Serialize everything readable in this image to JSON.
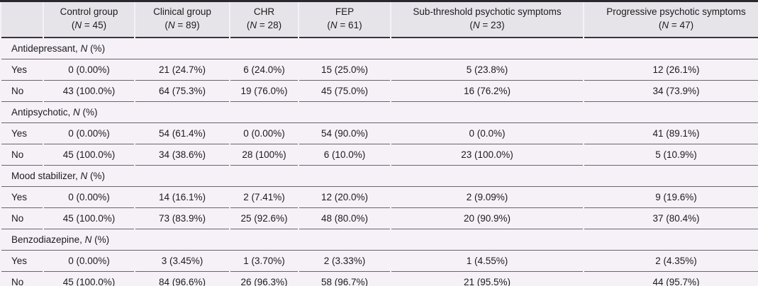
{
  "table": {
    "corner_label": "",
    "columns": [
      {
        "name": "Control group",
        "open": "(",
        "n": "N",
        "rest": " = 45)"
      },
      {
        "name": "Clinical group",
        "open": "(",
        "n": "N",
        "rest": " = 89)"
      },
      {
        "name": "CHR",
        "open": "(",
        "n": "N",
        "rest": " = 28)"
      },
      {
        "name": "FEP",
        "open": "(",
        "n": "N",
        "rest": " = 61)"
      },
      {
        "name": "Sub-threshold psychotic symptoms",
        "open": "(",
        "n": "N",
        "rest": " = 23)"
      },
      {
        "name": "Progressive psychotic symptoms",
        "open": "(",
        "n": "N",
        "rest": " = 47)"
      }
    ],
    "sections": [
      {
        "label_prefix": "Antidepressant, ",
        "label_n": "N",
        "label_suffix": " (%)",
        "rows": [
          {
            "label": "Yes",
            "values": [
              "0 (0.00%)",
              "21 (24.7%)",
              "6 (24.0%)",
              "15 (25.0%)",
              "5 (23.8%)",
              "12 (26.1%)"
            ]
          },
          {
            "label": "No",
            "values": [
              "43 (100.0%)",
              "64 (75.3%)",
              "19 (76.0%)",
              "45 (75.0%)",
              "16 (76.2%)",
              "34 (73.9%)"
            ]
          }
        ]
      },
      {
        "label_prefix": "Antipsychotic, ",
        "label_n": "N",
        "label_suffix": " (%)",
        "rows": [
          {
            "label": "Yes",
            "values": [
              "0 (0.00%)",
              "54 (61.4%)",
              "0 (0.00%)",
              "54 (90.0%)",
              "0 (0.0%)",
              "41 (89.1%)"
            ]
          },
          {
            "label": "No",
            "values": [
              "45 (100.0%)",
              "34 (38.6%)",
              "28 (100%)",
              "6 (10.0%)",
              "23 (100.0%)",
              "5 (10.9%)"
            ]
          }
        ]
      },
      {
        "label_prefix": "Mood stabilizer, ",
        "label_n": "N",
        "label_suffix": " (%)",
        "rows": [
          {
            "label": "Yes",
            "values": [
              "0 (0.00%)",
              "14 (16.1%)",
              "2 (7.41%)",
              "12 (20.0%)",
              "2 (9.09%)",
              "9 (19.6%)"
            ]
          },
          {
            "label": "No",
            "values": [
              "45 (100.0%)",
              "73 (83.9%)",
              "25 (92.6%)",
              "48 (80.0%)",
              "20 (90.9%)",
              "37 (80.4%)"
            ]
          }
        ]
      },
      {
        "label_prefix": "Benzodiazepine, ",
        "label_n": "N",
        "label_suffix": " (%)",
        "rows": [
          {
            "label": "Yes",
            "values": [
              "0 (0.00%)",
              "3 (3.45%)",
              "1 (3.70%)",
              "2 (3.33%)",
              "1 (4.55%)",
              "2 (4.35%)"
            ]
          },
          {
            "label": "No",
            "values": [
              "45 (100.0%)",
              "84 (96.6%)",
              "26 (96.3%)",
              "58 (96.7%)",
              "21 (95.5%)",
              "44 (95.7%)"
            ]
          }
        ]
      }
    ]
  },
  "colors": {
    "header_background": "#e7e4e9",
    "body_background": "#f5f1f7",
    "row_separator": "#6a6470",
    "heavy_rule": "#2b2730",
    "bottom_rule": "#17141a",
    "text": "#1c1b1e"
  }
}
